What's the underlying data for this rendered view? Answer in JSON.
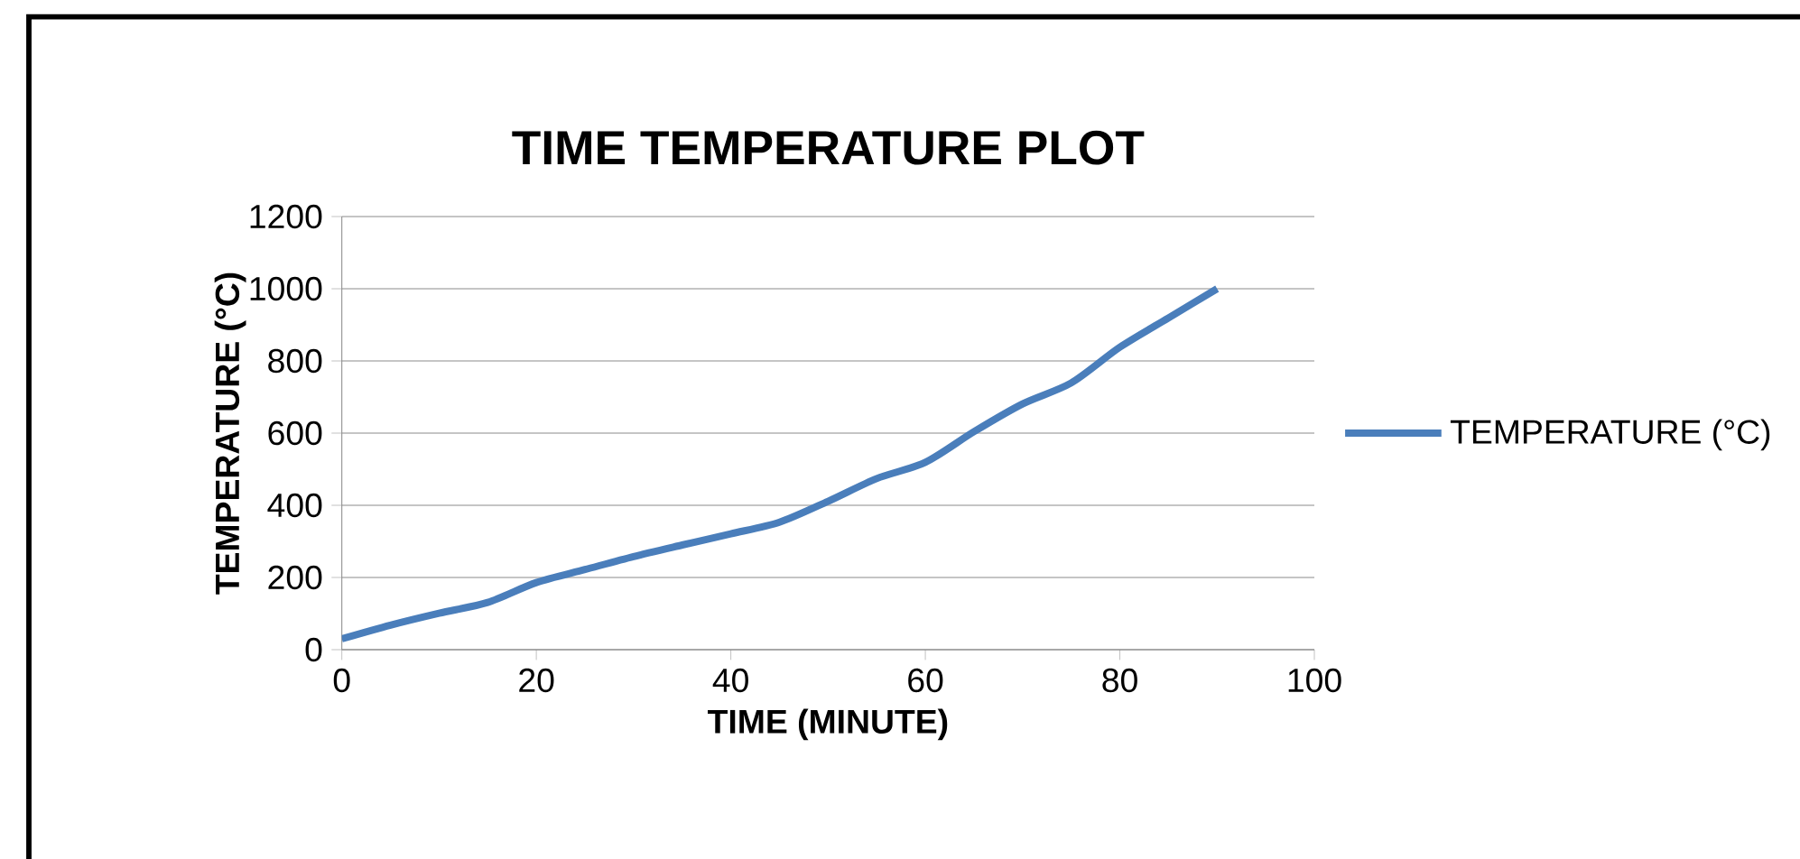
{
  "chart_data": {
    "type": "line",
    "title": "TIME TEMPERATURE PLOT",
    "xlabel": "TIME (MINUTE)",
    "ylabel": "TEMPERATURE (°C)",
    "x": [
      0,
      5,
      10,
      15,
      20,
      25,
      30,
      35,
      40,
      45,
      50,
      55,
      60,
      65,
      70,
      75,
      80,
      85,
      90
    ],
    "series": [
      {
        "name": "TEMPERATURE (°C)",
        "color": "#4a7ebb",
        "values": [
          30,
          68,
          101,
          131,
          186,
          222,
          258,
          290,
          321,
          353,
          411,
          474,
          519,
          604,
          681,
          739,
          838,
          919,
          1000
        ]
      }
    ],
    "xlim": [
      0,
      100
    ],
    "xticks": [
      0,
      20,
      40,
      60,
      80,
      100
    ],
    "ylim": [
      0,
      1200
    ],
    "yticks": [
      0,
      200,
      400,
      600,
      800,
      1000,
      1200
    ],
    "grid": "y",
    "legend": "right",
    "marker": "none",
    "line_style": "solid"
  }
}
